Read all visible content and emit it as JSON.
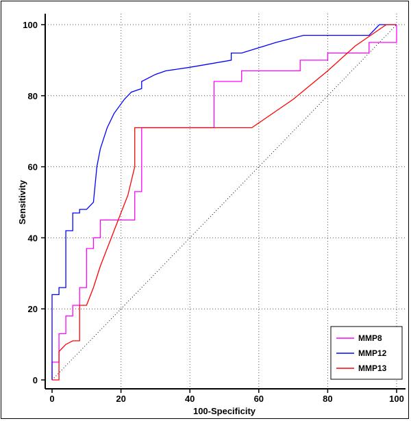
{
  "chart_data": {
    "type": "line",
    "xlabel": "100-Specificity",
    "ylabel": "Sensitivity",
    "xlim": [
      0,
      100
    ],
    "ylim": [
      0,
      100
    ],
    "xticks": [
      0,
      20,
      40,
      60,
      80,
      100
    ],
    "yticks": [
      0,
      20,
      40,
      60,
      80,
      100
    ],
    "grid": true,
    "legend_position": "bottom-right",
    "reference_line": {
      "x": [
        0,
        100
      ],
      "y": [
        0,
        100
      ],
      "style": "dotted"
    },
    "series": [
      {
        "name": "MMP8",
        "color": "#ff00ff",
        "x": [
          0,
          0,
          2,
          2,
          4,
          4,
          6,
          6,
          8,
          8,
          10,
          10,
          12,
          12,
          14,
          14,
          24,
          24,
          26,
          26,
          47,
          47,
          55,
          55,
          72,
          72,
          80,
          80,
          92,
          92,
          100,
          100
        ],
        "y": [
          0,
          5,
          5,
          13,
          13,
          18,
          18,
          21,
          21,
          26,
          26,
          37,
          37,
          40,
          40,
          45,
          45,
          53,
          53,
          71,
          71,
          84,
          84,
          87,
          87,
          90,
          90,
          92,
          92,
          95,
          95,
          100
        ]
      },
      {
        "name": "MMP12",
        "color": "#0000ff",
        "x": [
          0,
          0,
          2,
          2,
          4,
          4,
          6,
          6,
          8,
          8,
          10,
          12,
          13,
          14,
          16,
          18,
          21,
          23,
          26,
          26,
          30,
          33,
          40,
          52,
          52,
          55,
          65,
          73,
          92,
          95,
          100
        ],
        "y": [
          0,
          24,
          24,
          26,
          26,
          42,
          42,
          47,
          47,
          48,
          48,
          50,
          60,
          65,
          71,
          75,
          79,
          81,
          82,
          84,
          86,
          87,
          88,
          90,
          92,
          92,
          95,
          97,
          97,
          100,
          100
        ]
      },
      {
        "name": "MMP13",
        "color": "#ff0000",
        "x": [
          0,
          2,
          2,
          4,
          4,
          6,
          6,
          8,
          8,
          10,
          10,
          12,
          14,
          18,
          22,
          24,
          24,
          58,
          70,
          80,
          88,
          97,
          100
        ],
        "y": [
          0,
          0,
          8,
          10,
          10,
          11,
          11,
          11,
          21,
          21,
          21,
          26,
          32,
          42,
          52,
          60,
          71,
          71,
          79,
          87,
          94,
          100,
          100
        ]
      }
    ]
  }
}
